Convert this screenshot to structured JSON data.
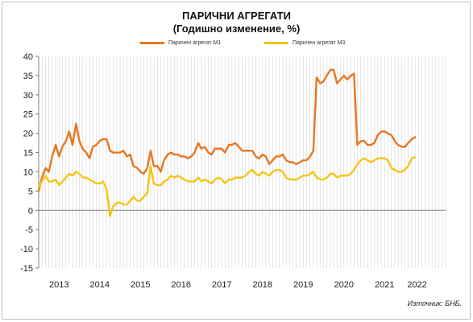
{
  "chart_data": {
    "type": "line",
    "title": "ПАРИЧНИ АГРЕГАТИ",
    "subtitle": "(Годишно изменение, %)",
    "source": "Източник: БНБ.",
    "ylim": [
      -15,
      40
    ],
    "yticks": [
      -15,
      -10,
      -5,
      0,
      5,
      10,
      15,
      20,
      25,
      30,
      35,
      40
    ],
    "xlim": [
      2012.5,
      2022.5
    ],
    "xtick_labels": [
      {
        "x": 2013.0,
        "label": "2013"
      },
      {
        "x": 2014.0,
        "label": "2014"
      },
      {
        "x": 2015.0,
        "label": "2015"
      },
      {
        "x": 2016.0,
        "label": "2016"
      },
      {
        "x": 2017.0,
        "label": "2017"
      },
      {
        "x": 2018.0,
        "label": "2018"
      },
      {
        "x": 2019.0,
        "label": "2019"
      },
      {
        "x": 2020.0,
        "label": "2020"
      },
      {
        "x": 2021.0,
        "label": "2021"
      },
      {
        "x": 2021.8,
        "label": "2022"
      }
    ],
    "grid": "vertical-monthly",
    "legend": "top",
    "series": [
      {
        "name": "Паричен агрегат М1",
        "color": "#E87722",
        "points": [
          [
            2012.5,
            5.0
          ],
          [
            2012.58,
            8.5
          ],
          [
            2012.67,
            11.0
          ],
          [
            2012.75,
            10.0
          ],
          [
            2012.83,
            14.0
          ],
          [
            2012.92,
            17.0
          ],
          [
            2013.0,
            14.0
          ],
          [
            2013.08,
            16.5
          ],
          [
            2013.17,
            18.0
          ],
          [
            2013.25,
            20.5
          ],
          [
            2013.33,
            17.0
          ],
          [
            2013.42,
            22.5
          ],
          [
            2013.5,
            18.0
          ],
          [
            2013.58,
            16.0
          ],
          [
            2013.67,
            15.0
          ],
          [
            2013.75,
            13.5
          ],
          [
            2013.83,
            16.5
          ],
          [
            2013.92,
            17.0
          ],
          [
            2014.0,
            18.0
          ],
          [
            2014.08,
            18.5
          ],
          [
            2014.17,
            18.5
          ],
          [
            2014.25,
            15.5
          ],
          [
            2014.33,
            15.0
          ],
          [
            2014.42,
            15.0
          ],
          [
            2014.5,
            15.0
          ],
          [
            2014.58,
            15.5
          ],
          [
            2014.67,
            14.0
          ],
          [
            2014.75,
            14.5
          ],
          [
            2014.83,
            11.5
          ],
          [
            2014.92,
            11.0
          ],
          [
            2015.0,
            10.0
          ],
          [
            2015.08,
            9.5
          ],
          [
            2015.17,
            11.0
          ],
          [
            2015.25,
            15.5
          ],
          [
            2015.33,
            11.5
          ],
          [
            2015.42,
            11.5
          ],
          [
            2015.5,
            10.0
          ],
          [
            2015.58,
            13.0
          ],
          [
            2015.67,
            14.5
          ],
          [
            2015.75,
            15.0
          ],
          [
            2015.83,
            14.5
          ],
          [
            2015.92,
            14.5
          ],
          [
            2016.0,
            14.0
          ],
          [
            2016.08,
            14.0
          ],
          [
            2016.17,
            13.5
          ],
          [
            2016.25,
            14.0
          ],
          [
            2016.33,
            15.0
          ],
          [
            2016.42,
            17.5
          ],
          [
            2016.5,
            16.0
          ],
          [
            2016.58,
            16.5
          ],
          [
            2016.67,
            15.0
          ],
          [
            2016.75,
            14.5
          ],
          [
            2016.83,
            16.0
          ],
          [
            2016.92,
            16.0
          ],
          [
            2017.0,
            16.0
          ],
          [
            2017.08,
            15.0
          ],
          [
            2017.17,
            17.0
          ],
          [
            2017.25,
            17.0
          ],
          [
            2017.33,
            17.5
          ],
          [
            2017.42,
            16.5
          ],
          [
            2017.5,
            15.5
          ],
          [
            2017.58,
            15.5
          ],
          [
            2017.67,
            15.5
          ],
          [
            2017.75,
            15.5
          ],
          [
            2017.83,
            14.0
          ],
          [
            2017.92,
            13.5
          ],
          [
            2018.0,
            14.5
          ],
          [
            2018.08,
            14.0
          ],
          [
            2018.17,
            12.0
          ],
          [
            2018.25,
            13.0
          ],
          [
            2018.33,
            14.0
          ],
          [
            2018.42,
            14.0
          ],
          [
            2018.5,
            14.5
          ],
          [
            2018.58,
            13.0
          ],
          [
            2018.67,
            12.5
          ],
          [
            2018.75,
            12.5
          ],
          [
            2018.83,
            12.0
          ],
          [
            2018.92,
            12.5
          ],
          [
            2019.0,
            13.0
          ],
          [
            2019.08,
            13.0
          ],
          [
            2019.17,
            14.0
          ],
          [
            2019.25,
            15.5
          ],
          [
            2019.33,
            34.5
          ],
          [
            2019.42,
            33.0
          ],
          [
            2019.5,
            33.5
          ],
          [
            2019.58,
            35.0
          ],
          [
            2019.67,
            36.5
          ],
          [
            2019.75,
            36.5
          ],
          [
            2019.83,
            33.0
          ],
          [
            2019.92,
            34.0
          ],
          [
            2020.0,
            35.0
          ],
          [
            2020.08,
            34.0
          ],
          [
            2020.17,
            35.0
          ],
          [
            2020.25,
            35.5
          ],
          [
            2020.33,
            17.0
          ],
          [
            2020.42,
            18.0
          ],
          [
            2020.5,
            18.0
          ],
          [
            2020.58,
            17.0
          ],
          [
            2020.67,
            17.0
          ],
          [
            2020.75,
            17.5
          ],
          [
            2020.83,
            19.5
          ],
          [
            2020.92,
            20.5
          ],
          [
            2021.0,
            20.5
          ],
          [
            2021.08,
            20.0
          ],
          [
            2021.17,
            19.5
          ],
          [
            2021.25,
            18.0
          ],
          [
            2021.33,
            17.0
          ],
          [
            2021.42,
            16.5
          ],
          [
            2021.5,
            16.5
          ],
          [
            2021.58,
            17.5
          ],
          [
            2021.67,
            18.5
          ],
          [
            2021.75,
            19.0
          ]
        ]
      },
      {
        "name": "Паричен агрегат М3",
        "color": "#F5C518",
        "points": [
          [
            2012.5,
            6.0
          ],
          [
            2012.58,
            7.5
          ],
          [
            2012.67,
            9.0
          ],
          [
            2012.75,
            7.5
          ],
          [
            2012.83,
            7.5
          ],
          [
            2012.92,
            8.0
          ],
          [
            2013.0,
            6.5
          ],
          [
            2013.08,
            7.5
          ],
          [
            2013.17,
            8.5
          ],
          [
            2013.25,
            9.5
          ],
          [
            2013.33,
            9.0
          ],
          [
            2013.42,
            10.0
          ],
          [
            2013.5,
            9.5
          ],
          [
            2013.58,
            8.5
          ],
          [
            2013.67,
            8.5
          ],
          [
            2013.75,
            8.0
          ],
          [
            2013.83,
            7.5
          ],
          [
            2013.92,
            7.0
          ],
          [
            2014.0,
            7.0
          ],
          [
            2014.08,
            7.5
          ],
          [
            2014.17,
            5.5
          ],
          [
            2014.25,
            -1.5
          ],
          [
            2014.33,
            1.0
          ],
          [
            2014.42,
            2.0
          ],
          [
            2014.5,
            2.0
          ],
          [
            2014.58,
            1.5
          ],
          [
            2014.67,
            1.5
          ],
          [
            2014.75,
            2.5
          ],
          [
            2014.83,
            3.5
          ],
          [
            2014.92,
            2.5
          ],
          [
            2015.0,
            2.5
          ],
          [
            2015.08,
            3.5
          ],
          [
            2015.17,
            4.5
          ],
          [
            2015.25,
            11.5
          ],
          [
            2015.33,
            7.0
          ],
          [
            2015.42,
            6.5
          ],
          [
            2015.5,
            6.5
          ],
          [
            2015.58,
            7.5
          ],
          [
            2015.67,
            8.0
          ],
          [
            2015.75,
            9.0
          ],
          [
            2015.83,
            8.5
          ],
          [
            2015.92,
            9.0
          ],
          [
            2016.0,
            8.5
          ],
          [
            2016.08,
            8.0
          ],
          [
            2016.17,
            7.5
          ],
          [
            2016.25,
            7.5
          ],
          [
            2016.33,
            7.5
          ],
          [
            2016.42,
            8.5
          ],
          [
            2016.5,
            7.5
          ],
          [
            2016.58,
            8.0
          ],
          [
            2016.67,
            7.5
          ],
          [
            2016.75,
            7.0
          ],
          [
            2016.83,
            8.0
          ],
          [
            2016.92,
            8.5
          ],
          [
            2017.0,
            8.0
          ],
          [
            2017.08,
            7.0
          ],
          [
            2017.17,
            8.0
          ],
          [
            2017.25,
            8.0
          ],
          [
            2017.33,
            8.5
          ],
          [
            2017.42,
            8.5
          ],
          [
            2017.5,
            8.5
          ],
          [
            2017.58,
            9.0
          ],
          [
            2017.67,
            10.0
          ],
          [
            2017.75,
            10.5
          ],
          [
            2017.83,
            9.5
          ],
          [
            2017.92,
            9.0
          ],
          [
            2018.0,
            10.0
          ],
          [
            2018.08,
            9.5
          ],
          [
            2018.17,
            9.0
          ],
          [
            2018.25,
            10.0
          ],
          [
            2018.33,
            10.5
          ],
          [
            2018.42,
            10.5
          ],
          [
            2018.5,
            10.0
          ],
          [
            2018.58,
            8.5
          ],
          [
            2018.67,
            8.0
          ],
          [
            2018.75,
            8.0
          ],
          [
            2018.83,
            8.0
          ],
          [
            2018.92,
            8.5
          ],
          [
            2019.0,
            9.0
          ],
          [
            2019.08,
            9.0
          ],
          [
            2019.17,
            9.5
          ],
          [
            2019.25,
            10.0
          ],
          [
            2019.33,
            8.5
          ],
          [
            2019.42,
            8.0
          ],
          [
            2019.5,
            8.0
          ],
          [
            2019.58,
            8.5
          ],
          [
            2019.67,
            9.5
          ],
          [
            2019.75,
            9.5
          ],
          [
            2019.83,
            8.5
          ],
          [
            2019.92,
            9.0
          ],
          [
            2020.0,
            9.0
          ],
          [
            2020.08,
            9.0
          ],
          [
            2020.17,
            9.5
          ],
          [
            2020.25,
            10.5
          ],
          [
            2020.33,
            12.0
          ],
          [
            2020.42,
            13.0
          ],
          [
            2020.5,
            13.5
          ],
          [
            2020.58,
            13.0
          ],
          [
            2020.67,
            12.5
          ],
          [
            2020.75,
            13.0
          ],
          [
            2020.83,
            13.5
          ],
          [
            2020.92,
            13.5
          ],
          [
            2021.0,
            13.5
          ],
          [
            2021.08,
            13.0
          ],
          [
            2021.17,
            11.0
          ],
          [
            2021.25,
            10.5
          ],
          [
            2021.33,
            10.0
          ],
          [
            2021.42,
            10.0
          ],
          [
            2021.5,
            10.5
          ],
          [
            2021.58,
            11.5
          ],
          [
            2021.67,
            13.5
          ],
          [
            2021.75,
            13.8
          ]
        ]
      }
    ]
  }
}
